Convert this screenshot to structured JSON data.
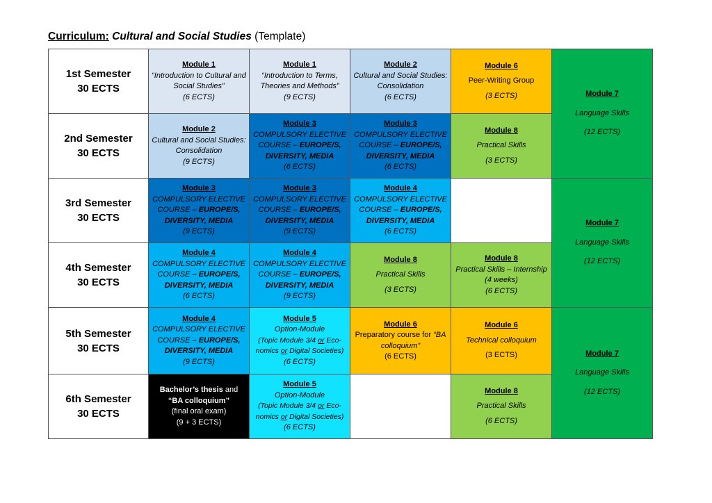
{
  "title": {
    "prefix": "Curriculum:",
    "name": "Cultural and Social Studies",
    "suffix": "(Template)"
  },
  "semesters": [
    {
      "label": "1st Semester",
      "ects": "30 ECTS"
    },
    {
      "label": "2nd Semester",
      "ects": "30 ECTS"
    },
    {
      "label": "3rd Semester",
      "ects": "30 ECTS"
    },
    {
      "label": "4th Semester",
      "ects": "30 ECTS"
    },
    {
      "label": "5th Semester",
      "ects": "30 ECTS"
    },
    {
      "label": "6th Semester",
      "ects": "30 ECTS"
    }
  ],
  "text": {
    "m1": "Module 1",
    "m2": "Module 2",
    "m3": "Module 3",
    "m4": "Module 4",
    "m5": "Module 5",
    "m6": "Module 6",
    "m7": "Module 7",
    "m8": "Module 8",
    "intro_cultural": "“Introduction to Cultural and Social Studies”",
    "intro_terms": "“Introduction to Terms, Theories and Methods”",
    "consolidation": "Cultural and Social Studies: Consolidation",
    "ce_a": "COMPULSORY ELECTIVE COURSE –",
    "ce_b": "EUROPE/S, DIVERSITY, MEDIA",
    "peer": "Peer-Writing Group",
    "practical": "Practical Skills",
    "internship": "Practical Skills – Internship (4 weeks)",
    "option": "Option-Module",
    "topic_a": "(Topic Module 3/4",
    "or": "or",
    "eco": "Eco-nomics",
    "digital": "Digital Societies)",
    "prep_a": "Preparatory course for",
    "prep_b": "“BA colloquium”",
    "technical": "Technical colloquium",
    "lang": "Language Skills",
    "thesis_a": "Bachelor’s thesis",
    "thesis_and": "and",
    "thesis_b": "“BA colloquium”",
    "thesis_c": "(final oral exam)",
    "e3": "(3 ECTS)",
    "e6": "(6 ECTS)",
    "e9": "(9 ECTS)",
    "e12": "(12 ECTS)",
    "e93": "(9 + 3 ECTS)",
    "e6n": "(6 ECTS)",
    "e3n": "(3 ECTS)"
  },
  "colors": {
    "light_blue": "#dce6f2",
    "mid_blue": "#bdd7ee",
    "dark_blue": "#0070c0",
    "sky_blue": "#00b0f0",
    "cyan": "#10e2ff",
    "orange": "#ffc000",
    "light_green": "#92d050",
    "green": "#00b050",
    "black": "#000000"
  }
}
